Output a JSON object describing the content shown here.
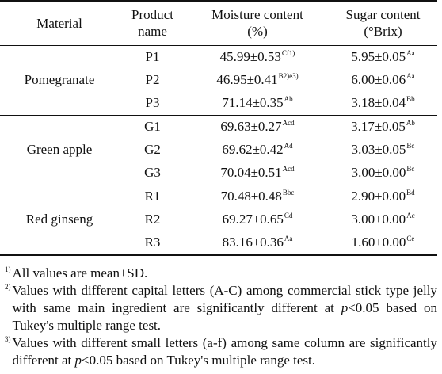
{
  "headers": {
    "material": "Material",
    "product_line1": "Product",
    "product_line2": "name",
    "moisture_line1": "Moisture content",
    "moisture_line2": "(%)",
    "sugar_line1": "Sugar content",
    "sugar_line2": "(°Brix)"
  },
  "groups": [
    {
      "material": "Pomegranate",
      "rows": [
        {
          "product": "P1",
          "moisture": "45.99±0.53",
          "moisture_sig": "Cf1)",
          "sugar": "5.95±0.05",
          "sugar_sig": "Aa"
        },
        {
          "product": "P2",
          "moisture": "46.95±0.41",
          "moisture_sig": "B2)e3)",
          "sugar": "6.00±0.06",
          "sugar_sig": "Aa"
        },
        {
          "product": "P3",
          "moisture": "71.14±0.35",
          "moisture_sig": "Ab",
          "sugar": "3.18±0.04",
          "sugar_sig": "Bb"
        }
      ]
    },
    {
      "material": "Green apple",
      "rows": [
        {
          "product": "G1",
          "moisture": "69.63±0.27",
          "moisture_sig": "Acd",
          "sugar": "3.17±0.05",
          "sugar_sig": "Ab"
        },
        {
          "product": "G2",
          "moisture": "69.62±0.42",
          "moisture_sig": "Ad",
          "sugar": "3.03±0.05",
          "sugar_sig": "Bc"
        },
        {
          "product": "G3",
          "moisture": "70.04±0.51",
          "moisture_sig": "Acd",
          "sugar": "3.00±0.00",
          "sugar_sig": "Bc"
        }
      ]
    },
    {
      "material": "Red ginseng",
      "rows": [
        {
          "product": "R1",
          "moisture": "70.48±0.48",
          "moisture_sig": "Bbc",
          "sugar": "2.90±0.00",
          "sugar_sig": "Bd"
        },
        {
          "product": "R2",
          "moisture": "69.27±0.65",
          "moisture_sig": "Cd",
          "sugar": "3.00±0.00",
          "sugar_sig": "Ac"
        },
        {
          "product": "R3",
          "moisture": "83.16±0.36",
          "moisture_sig": "Aa",
          "sugar": "1.60±0.00",
          "sugar_sig": "Ce"
        }
      ]
    }
  ],
  "footnotes": [
    {
      "num": "1)",
      "text_before": "All values are mean±SD.",
      "italic": "",
      "text_after": ""
    },
    {
      "num": "2)",
      "text_before": "Values with different capital letters (A-C) among commercial stick type jelly with same main ingredient are significantly different at ",
      "italic": "p",
      "text_after": "<0.05 based on Tukey's multiple range test."
    },
    {
      "num": "3)",
      "text_before": "Values with different small letters (a-f) among same column are significantly different at ",
      "italic": "p",
      "text_after": "<0.05 based on Tukey's multiple range test."
    }
  ]
}
